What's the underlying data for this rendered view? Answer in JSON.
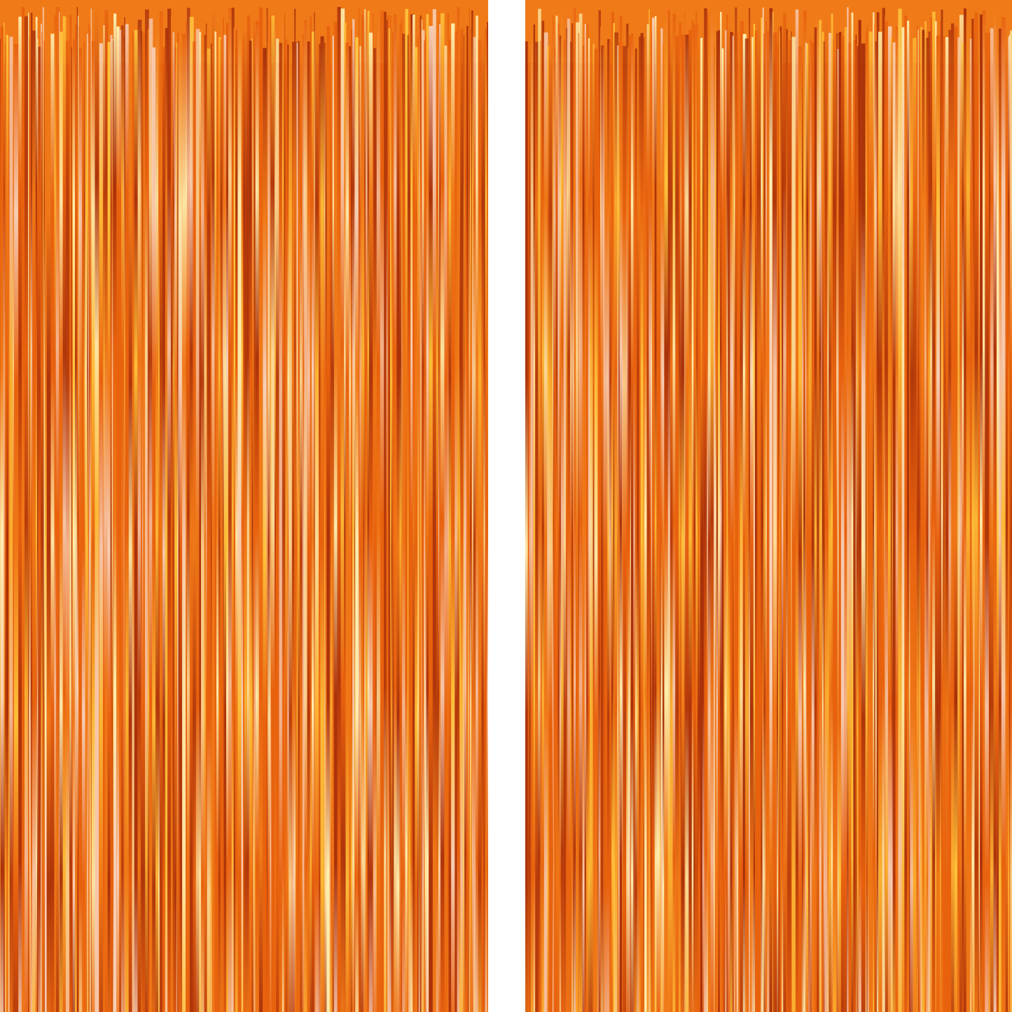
{
  "scene": {
    "subject": "foil-fringe-curtain",
    "count": 2,
    "colors": {
      "background": "#ffffff",
      "base": "#e8620e",
      "dark": "#a8300a",
      "mid": "#f07a18",
      "highlight": "#ffc23a",
      "bright": "#fff0b0",
      "pale": "#f8d0b8"
    }
  }
}
